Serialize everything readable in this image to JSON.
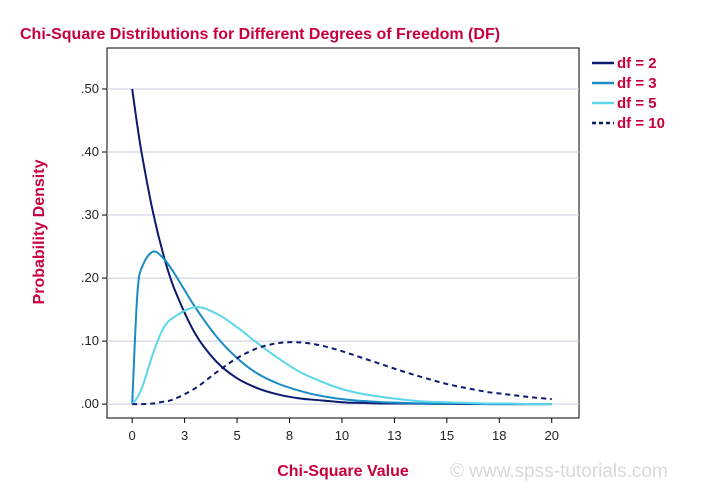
{
  "chart_data": {
    "type": "line",
    "title": "Chi-Square Distributions for Different Degrees of Freedom (DF)",
    "xlabel": "Chi-Square Value",
    "ylabel": "Probability Density",
    "xlim": [
      -1.2,
      21.3
    ],
    "ylim": [
      -0.022,
      0.565
    ],
    "x_ticks": [
      {
        "value": 0,
        "label": "0"
      },
      {
        "value": 2.5,
        "label": "3"
      },
      {
        "value": 5,
        "label": "5"
      },
      {
        "value": 7.5,
        "label": "8"
      },
      {
        "value": 10,
        "label": "10"
      },
      {
        "value": 12.5,
        "label": "13"
      },
      {
        "value": 15,
        "label": "15"
      },
      {
        "value": 17.5,
        "label": "18"
      },
      {
        "value": 20,
        "label": "20"
      }
    ],
    "y_ticks": [
      {
        "value": 0,
        "label": ".00"
      },
      {
        "value": 0.1,
        "label": ".10"
      },
      {
        "value": 0.2,
        "label": ".20"
      },
      {
        "value": 0.3,
        "label": ".30"
      },
      {
        "value": 0.4,
        "label": ".40"
      },
      {
        "value": 0.5,
        "label": ".50"
      }
    ],
    "grid": "horizontal",
    "legend_position": "right-top",
    "x": [
      0,
      0.25,
      0.5,
      1,
      1.5,
      2,
      3,
      4,
      5,
      6,
      7,
      8,
      9,
      10,
      11,
      12,
      13,
      14,
      15,
      16,
      17,
      18,
      19,
      20
    ],
    "series": [
      {
        "name": "df = 2",
        "color": "#0c1a6e",
        "dash": "solid",
        "values": [
          0.5,
          0.441,
          0.389,
          0.303,
          0.236,
          0.184,
          0.112,
          0.068,
          0.041,
          0.025,
          0.015,
          0.009,
          0.006,
          0.003,
          0.002,
          0.001,
          0.001,
          0.0005,
          0.0003,
          0.0002,
          0.0001,
          0.0001,
          0.0,
          0.0
        ]
      },
      {
        "name": "df = 3",
        "color": "#1a8bc6",
        "dash": "solid",
        "values": [
          0.0,
          0.176,
          0.22,
          0.242,
          0.231,
          0.208,
          0.154,
          0.108,
          0.073,
          0.048,
          0.032,
          0.021,
          0.013,
          0.008,
          0.005,
          0.003,
          0.002,
          0.001,
          0.001,
          0.001,
          0.0,
          0.0,
          0.0,
          0.0
        ]
      },
      {
        "name": "df = 5",
        "color": "#5cd6ea",
        "dash": "solid",
        "values": [
          0.0,
          0.011,
          0.029,
          0.081,
          0.121,
          0.138,
          0.154,
          0.144,
          0.122,
          0.096,
          0.072,
          0.051,
          0.036,
          0.024,
          0.016,
          0.011,
          0.007,
          0.004,
          0.003,
          0.002,
          0.001,
          0.001,
          0.0,
          0.0
        ]
      },
      {
        "name": "df = 10",
        "color": "#0c1a6e",
        "dash": "dashed",
        "values": [
          0.0,
          0.0,
          0.0,
          0.001,
          0.004,
          0.008,
          0.025,
          0.05,
          0.073,
          0.089,
          0.097,
          0.098,
          0.093,
          0.084,
          0.073,
          0.062,
          0.051,
          0.041,
          0.032,
          0.025,
          0.019,
          0.015,
          0.011,
          0.008
        ]
      }
    ]
  },
  "watermark": "© www.spss-tutorials.com"
}
